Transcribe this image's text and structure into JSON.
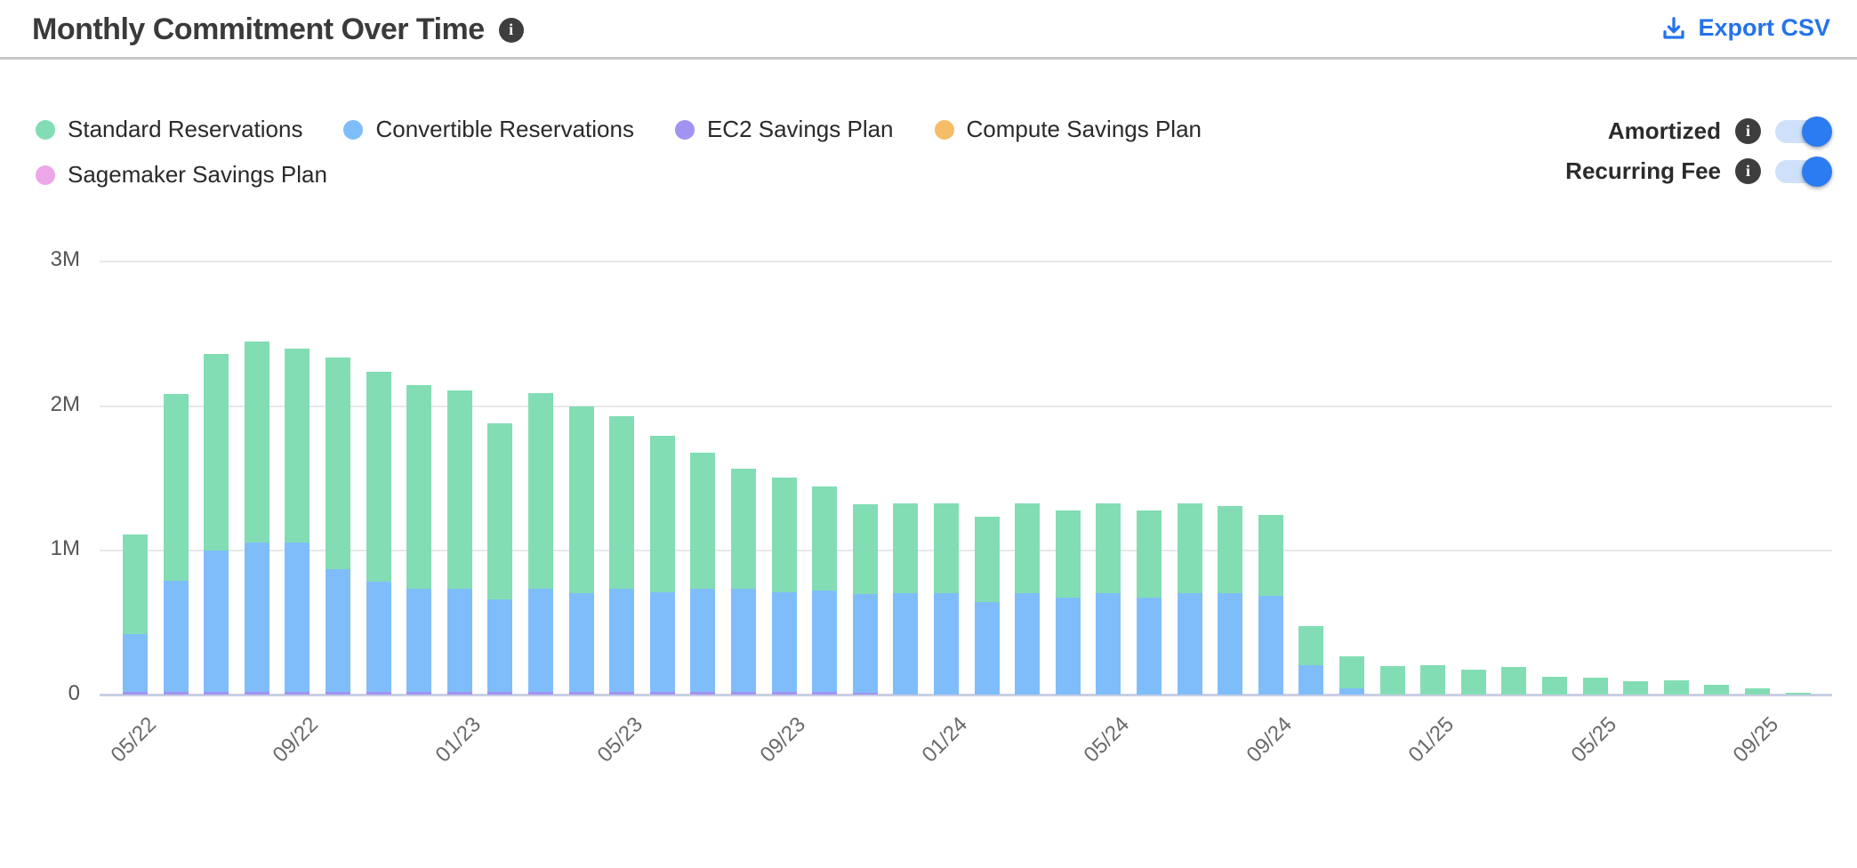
{
  "header": {
    "title": "Monthly Commitment Over Time",
    "export_label": "Export CSV",
    "info_glyph": "i"
  },
  "colors": {
    "accent_blue": "#2573ea",
    "toggle_on": "#2b7cf0",
    "toggle_track": "#cfe1fa",
    "info_icon_bg": "#3e3e3e",
    "divider": "#c7c7c7",
    "gridline": "#e8e8ec",
    "axis_line": "#c9cfe4"
  },
  "controls": {
    "toggles": [
      {
        "label": "Amortized",
        "state": "on"
      },
      {
        "label": "Recurring Fee",
        "state": "on"
      }
    ]
  },
  "chart_data": {
    "type": "bar",
    "stacked": true,
    "title": "Monthly Commitment Over Time",
    "values_unit": "millions",
    "ylim": [
      0,
      3000000
    ],
    "yticks": [
      {
        "value": 0,
        "label": "0"
      },
      {
        "value": 1,
        "label": "1M"
      },
      {
        "value": 2,
        "label": "2M"
      },
      {
        "value": 3,
        "label": "3M"
      }
    ],
    "x_label_every": 4,
    "legend_position": "top-left",
    "grid": "horizontal",
    "categories": [
      "05/22",
      "06/22",
      "07/22",
      "08/22",
      "09/22",
      "10/22",
      "11/22",
      "12/22",
      "01/23",
      "02/23",
      "03/23",
      "04/23",
      "05/23",
      "06/23",
      "07/23",
      "08/23",
      "09/23",
      "10/23",
      "11/23",
      "12/23",
      "01/24",
      "02/24",
      "03/24",
      "04/24",
      "05/24",
      "06/24",
      "07/24",
      "08/24",
      "09/24",
      "10/24",
      "11/24",
      "12/24",
      "01/25",
      "02/25",
      "03/25",
      "04/25",
      "05/25",
      "06/25",
      "07/25",
      "08/25",
      "09/25",
      "10/25"
    ],
    "stack_order": [
      2,
      1,
      0,
      3,
      4
    ],
    "series": [
      {
        "name": "Standard Reservations",
        "color": "#82ddb4",
        "values": [
          0.69,
          1.29,
          1.36,
          1.39,
          1.34,
          1.46,
          1.45,
          1.41,
          1.37,
          1.22,
          1.35,
          1.29,
          1.19,
          1.08,
          0.94,
          0.83,
          0.79,
          0.72,
          0.62,
          0.62,
          0.62,
          0.59,
          0.62,
          0.6,
          0.62,
          0.6,
          0.62,
          0.6,
          0.56,
          0.27,
          0.22,
          0.195,
          0.2,
          0.17,
          0.19,
          0.12,
          0.115,
          0.095,
          0.1,
          0.07,
          0.045,
          0.015
        ]
      },
      {
        "name": "Convertible Reservations",
        "color": "#7fbdfa",
        "values": [
          0.4,
          0.77,
          0.98,
          1.03,
          1.03,
          0.85,
          0.76,
          0.71,
          0.71,
          0.64,
          0.71,
          0.68,
          0.71,
          0.69,
          0.71,
          0.71,
          0.69,
          0.7,
          0.68,
          0.7,
          0.7,
          0.64,
          0.7,
          0.67,
          0.7,
          0.67,
          0.7,
          0.7,
          0.68,
          0.2,
          0.04,
          0,
          0,
          0,
          0,
          0,
          0,
          0,
          0,
          0,
          0,
          0
        ]
      },
      {
        "name": "EC2 Savings Plan",
        "color": "#a193f2",
        "values": [
          0.02,
          0.02,
          0.02,
          0.02,
          0.02,
          0.02,
          0.02,
          0.02,
          0.02,
          0.02,
          0.02,
          0.02,
          0.02,
          0.02,
          0.02,
          0.02,
          0.02,
          0.02,
          0.01,
          0,
          0,
          0,
          0,
          0,
          0,
          0,
          0,
          0,
          0,
          0,
          0,
          0,
          0,
          0,
          0,
          0,
          0,
          0,
          0,
          0,
          0,
          0
        ]
      },
      {
        "name": "Compute Savings Plan",
        "color": "#f5bd68",
        "values": [
          0,
          0,
          0,
          0,
          0,
          0,
          0,
          0,
          0,
          0,
          0,
          0,
          0,
          0,
          0,
          0,
          0,
          0,
          0,
          0,
          0,
          0,
          0,
          0,
          0,
          0,
          0,
          0,
          0,
          0,
          0,
          0,
          0,
          0,
          0,
          0,
          0,
          0,
          0,
          0,
          0,
          0
        ]
      },
      {
        "name": "Sagemaker Savings Plan",
        "color": "#eda6e8",
        "values": [
          0,
          0,
          0,
          0,
          0,
          0,
          0,
          0,
          0,
          0,
          0,
          0,
          0,
          0,
          0,
          0,
          0,
          0,
          0,
          0,
          0,
          0,
          0,
          0,
          0,
          0,
          0,
          0,
          0,
          0,
          0,
          0,
          0,
          0,
          0,
          0,
          0,
          0,
          0,
          0,
          0,
          0
        ]
      }
    ]
  }
}
